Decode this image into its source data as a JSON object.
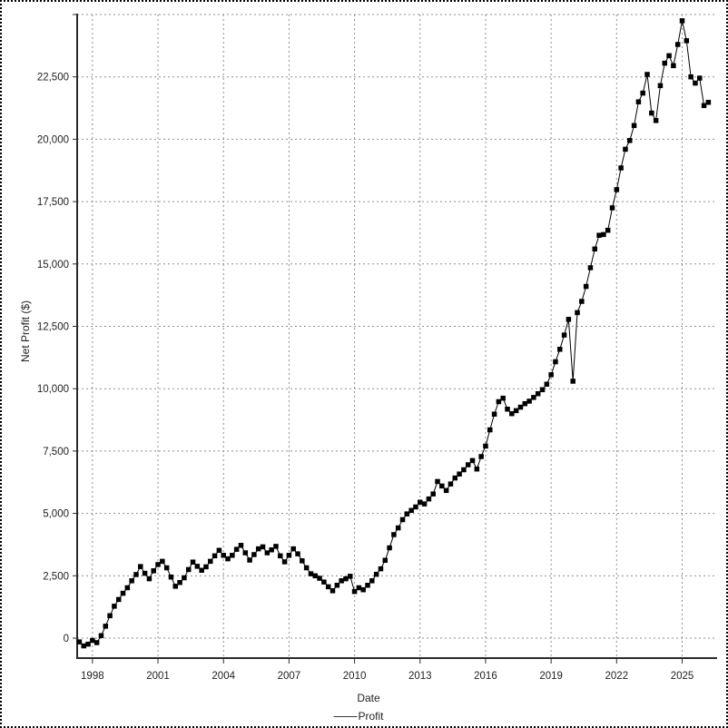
{
  "figure": {
    "ylabel": "Net Profit ($)",
    "xlabel": "Date",
    "legend_label": "Profit"
  },
  "chart_data": {
    "type": "line",
    "title": "",
    "xlabel": "Date",
    "ylabel": "Net Profit ($)",
    "marker": "square",
    "grid": true,
    "legend_position": "bottom-center",
    "xlim": [
      1997.3,
      2026.6
    ],
    "ylim": [
      -800,
      25000
    ],
    "x_tick_values": [
      1998,
      2001,
      2004,
      2007,
      2010,
      2013,
      2016,
      2019,
      2022,
      2025
    ],
    "x_tick_labels": [
      "1998",
      "2001",
      "2004",
      "2007",
      "2010",
      "2013",
      "2016",
      "2019",
      "2022",
      "2025"
    ],
    "y_tick_values": [
      0,
      2500,
      5000,
      7500,
      10000,
      12500,
      15000,
      17500,
      20000,
      22500
    ],
    "y_tick_labels": [
      "0",
      "2,500",
      "5,000",
      "7,500",
      "10,000",
      "12,500",
      "15,000",
      "17,500",
      "20,000",
      "22,500"
    ],
    "y_gridline_values": [
      0,
      2500,
      5000,
      7500,
      10000,
      12500,
      15000,
      17500,
      20000,
      22500,
      25000
    ],
    "colors": {
      "series": "#000000",
      "grid": "#8f8f8f",
      "axis": "#2b2b2b",
      "text": "#1f1f1f",
      "background": "#ffffff"
    },
    "series": [
      {
        "name": "Profit",
        "points": [
          [
            1997.4,
            -150
          ],
          [
            1997.6,
            -310
          ],
          [
            1997.8,
            -240
          ],
          [
            1998,
            -90
          ],
          [
            1998.2,
            -180
          ],
          [
            1998.4,
            100
          ],
          [
            1998.6,
            480
          ],
          [
            1998.8,
            900
          ],
          [
            1999,
            1280
          ],
          [
            1999.2,
            1550
          ],
          [
            1999.4,
            1800
          ],
          [
            1999.6,
            2020
          ],
          [
            1999.8,
            2300
          ],
          [
            2000,
            2550
          ],
          [
            2000.2,
            2870
          ],
          [
            2000.4,
            2600
          ],
          [
            2000.6,
            2380
          ],
          [
            2000.8,
            2700
          ],
          [
            2001,
            2950
          ],
          [
            2001.2,
            3080
          ],
          [
            2001.4,
            2820
          ],
          [
            2001.6,
            2450
          ],
          [
            2001.8,
            2080
          ],
          [
            2002,
            2230
          ],
          [
            2002.2,
            2420
          ],
          [
            2002.4,
            2750
          ],
          [
            2002.6,
            3050
          ],
          [
            2002.8,
            2880
          ],
          [
            2003,
            2720
          ],
          [
            2003.2,
            2860
          ],
          [
            2003.4,
            3080
          ],
          [
            2003.6,
            3300
          ],
          [
            2003.8,
            3520
          ],
          [
            2004,
            3320
          ],
          [
            2004.2,
            3180
          ],
          [
            2004.4,
            3320
          ],
          [
            2004.6,
            3560
          ],
          [
            2004.8,
            3720
          ],
          [
            2005,
            3420
          ],
          [
            2005.2,
            3130
          ],
          [
            2005.4,
            3350
          ],
          [
            2005.6,
            3580
          ],
          [
            2005.8,
            3660
          ],
          [
            2006,
            3420
          ],
          [
            2006.2,
            3540
          ],
          [
            2006.4,
            3680
          ],
          [
            2006.6,
            3300
          ],
          [
            2006.8,
            3060
          ],
          [
            2007,
            3320
          ],
          [
            2007.2,
            3580
          ],
          [
            2007.4,
            3380
          ],
          [
            2007.6,
            3100
          ],
          [
            2007.8,
            2820
          ],
          [
            2008,
            2580
          ],
          [
            2008.2,
            2500
          ],
          [
            2008.4,
            2400
          ],
          [
            2008.6,
            2250
          ],
          [
            2008.8,
            2060
          ],
          [
            2009,
            1900
          ],
          [
            2009.2,
            2120
          ],
          [
            2009.4,
            2300
          ],
          [
            2009.6,
            2380
          ],
          [
            2009.8,
            2480
          ],
          [
            2010,
            1870
          ],
          [
            2010.2,
            2020
          ],
          [
            2010.4,
            1940
          ],
          [
            2010.6,
            2120
          ],
          [
            2010.8,
            2300
          ],
          [
            2011,
            2560
          ],
          [
            2011.2,
            2780
          ],
          [
            2011.4,
            3120
          ],
          [
            2011.6,
            3620
          ],
          [
            2011.8,
            4150
          ],
          [
            2012,
            4420
          ],
          [
            2012.2,
            4750
          ],
          [
            2012.4,
            4980
          ],
          [
            2012.6,
            5120
          ],
          [
            2012.8,
            5260
          ],
          [
            2013,
            5450
          ],
          [
            2013.2,
            5380
          ],
          [
            2013.4,
            5580
          ],
          [
            2013.6,
            5780
          ],
          [
            2013.8,
            6280
          ],
          [
            2014,
            6100
          ],
          [
            2014.2,
            5920
          ],
          [
            2014.4,
            6180
          ],
          [
            2014.6,
            6420
          ],
          [
            2014.8,
            6580
          ],
          [
            2015,
            6750
          ],
          [
            2015.2,
            6950
          ],
          [
            2015.4,
            7120
          ],
          [
            2015.6,
            6780
          ],
          [
            2015.8,
            7280
          ],
          [
            2016,
            7700
          ],
          [
            2016.2,
            8350
          ],
          [
            2016.4,
            8980
          ],
          [
            2016.6,
            9480
          ],
          [
            2016.8,
            9620
          ],
          [
            2017,
            9180
          ],
          [
            2017.2,
            9000
          ],
          [
            2017.4,
            9120
          ],
          [
            2017.6,
            9260
          ],
          [
            2017.8,
            9400
          ],
          [
            2018,
            9500
          ],
          [
            2018.2,
            9650
          ],
          [
            2018.4,
            9800
          ],
          [
            2018.6,
            9960
          ],
          [
            2018.8,
            10180
          ],
          [
            2019,
            10560
          ],
          [
            2019.2,
            11080
          ],
          [
            2019.4,
            11580
          ],
          [
            2019.6,
            12150
          ],
          [
            2019.8,
            12780
          ],
          [
            2020,
            10300
          ],
          [
            2020.2,
            13050
          ],
          [
            2020.4,
            13500
          ],
          [
            2020.6,
            14100
          ],
          [
            2020.8,
            14850
          ],
          [
            2021,
            15600
          ],
          [
            2021.2,
            16150
          ],
          [
            2021.4,
            16180
          ],
          [
            2021.6,
            16350
          ],
          [
            2021.8,
            17250
          ],
          [
            2022,
            17980
          ],
          [
            2022.2,
            18850
          ],
          [
            2022.4,
            19600
          ],
          [
            2022.6,
            19950
          ],
          [
            2022.8,
            20550
          ],
          [
            2023,
            21500
          ],
          [
            2023.2,
            21850
          ],
          [
            2023.4,
            22600
          ],
          [
            2023.6,
            21050
          ],
          [
            2023.8,
            20750
          ],
          [
            2024,
            22150
          ],
          [
            2024.2,
            23050
          ],
          [
            2024.4,
            23350
          ],
          [
            2024.6,
            22950
          ],
          [
            2024.8,
            23800
          ],
          [
            2025,
            24750
          ],
          [
            2025.2,
            23950
          ],
          [
            2025.4,
            22500
          ],
          [
            2025.6,
            22250
          ],
          [
            2025.8,
            22450
          ],
          [
            2026,
            21350
          ],
          [
            2026.2,
            21480
          ]
        ]
      }
    ]
  }
}
